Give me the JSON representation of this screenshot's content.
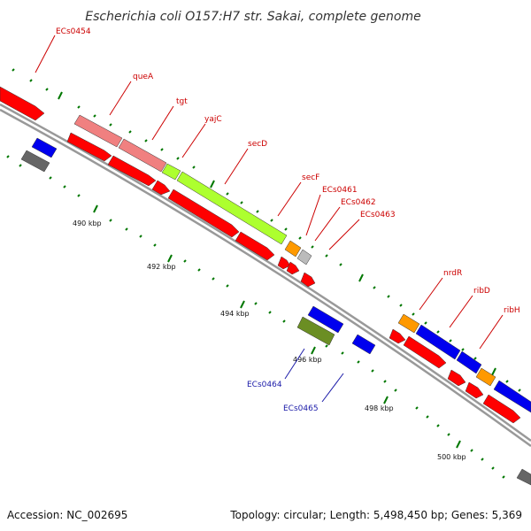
{
  "title": "Escherichia coli O157:H7 str. Sakai, complete genome",
  "footer": {
    "accession": "Accession: NC_002695",
    "summary": "Topology: circular; Length: 5,498,450 bp; Genes: 5,369"
  },
  "scale_labels": [
    "490 kbp",
    "492 kbp",
    "494 kbp",
    "496 kbp",
    "498 kbp",
    "500 kbp"
  ],
  "gene_labels": {
    "ECs0454": "ECs0454",
    "queA": "queA",
    "tgt": "tgt",
    "yajC": "yajC",
    "secD": "secD",
    "secF": "secF",
    "ECs0461": "ECs0461",
    "ECs0462": "ECs0462",
    "ECs0463": "ECs0463",
    "nrdR": "nrdR",
    "ribD": "ribD",
    "ribH": "ribH",
    "ECs0464": "ECs0464",
    "ECs0465": "ECs0465"
  },
  "colors": {
    "cds": "#ff0000",
    "pink_feature": "#f08080",
    "secD_feature": "#adff2f",
    "orange_feature": "#ff9900",
    "gray_feature": "#bbbbbb",
    "blue_feature": "#0000ee",
    "olive_feature": "#6b8e23",
    "dark_gray_feature": "#666666",
    "backbone": "#999999",
    "tick": "#007700"
  }
}
